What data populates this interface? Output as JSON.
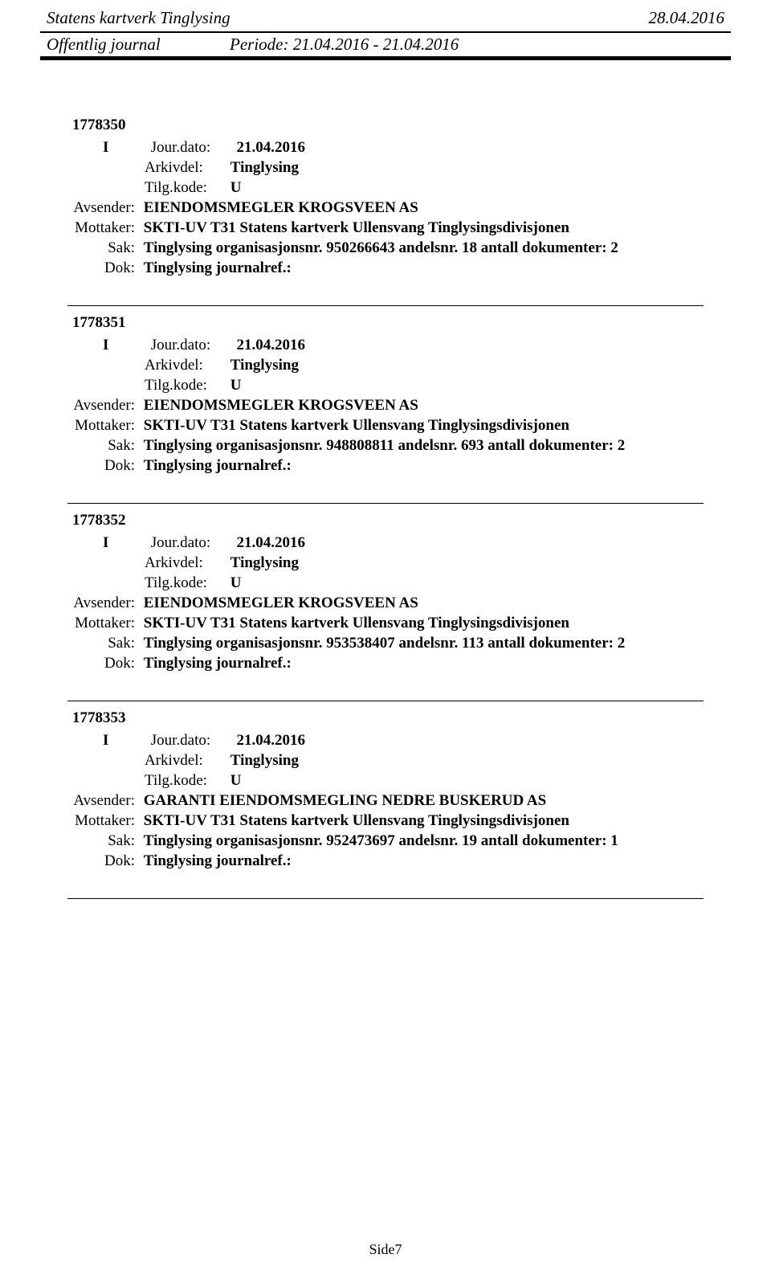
{
  "header": {
    "org": "Statens kartverk Tinglysing",
    "date": "28.04.2016",
    "journal_label": "Offentlig journal",
    "period_prefix": "Periode:",
    "period_value": "21.04.2016 - 21.04.2016"
  },
  "labels": {
    "jourdato": "Jour.dato:",
    "arkivdel": "Arkivdel:",
    "tilgkode": "Tilg.kode:",
    "avsender": "Avsender:",
    "mottaker": "Mottaker:",
    "sak": "Sak:",
    "dok": "Dok:"
  },
  "entries": [
    {
      "id": "1778350",
      "type": "I",
      "jourdato": "21.04.2016",
      "arkivdel": "Tinglysing",
      "tilgkode": "U",
      "avsender": "EIENDOMSMEGLER KROGSVEEN AS",
      "mottaker": "SKTI-UV T31 Statens kartverk Ullensvang Tinglysingsdivisjonen",
      "sak": "Tinglysing organisasjonsnr. 950266643 andelsnr. 18 antall dokumenter: 2",
      "dok": "Tinglysing journalref.:"
    },
    {
      "id": "1778351",
      "type": "I",
      "jourdato": "21.04.2016",
      "arkivdel": "Tinglysing",
      "tilgkode": "U",
      "avsender": "EIENDOMSMEGLER KROGSVEEN AS",
      "mottaker": "SKTI-UV T31 Statens kartverk Ullensvang Tinglysingsdivisjonen",
      "sak": "Tinglysing organisasjonsnr. 948808811 andelsnr. 693 antall dokumenter: 2",
      "dok": "Tinglysing journalref.:"
    },
    {
      "id": "1778352",
      "type": "I",
      "jourdato": "21.04.2016",
      "arkivdel": "Tinglysing",
      "tilgkode": "U",
      "avsender": "EIENDOMSMEGLER KROGSVEEN AS",
      "mottaker": "SKTI-UV T31 Statens kartverk Ullensvang Tinglysingsdivisjonen",
      "sak": "Tinglysing organisasjonsnr. 953538407 andelsnr. 113 antall dokumenter: 2",
      "dok": "Tinglysing journalref.:"
    },
    {
      "id": "1778353",
      "type": "I",
      "jourdato": "21.04.2016",
      "arkivdel": "Tinglysing",
      "tilgkode": "U",
      "avsender": "GARANTI EIENDOMSMEGLING NEDRE BUSKERUD AS",
      "mottaker": "SKTI-UV T31 Statens kartverk Ullensvang Tinglysingsdivisjonen",
      "sak": "Tinglysing organisasjonsnr. 952473697 andelsnr. 19 antall dokumenter: 1",
      "dok": "Tinglysing journalref.:"
    }
  ],
  "footer": {
    "page": "Side7"
  }
}
